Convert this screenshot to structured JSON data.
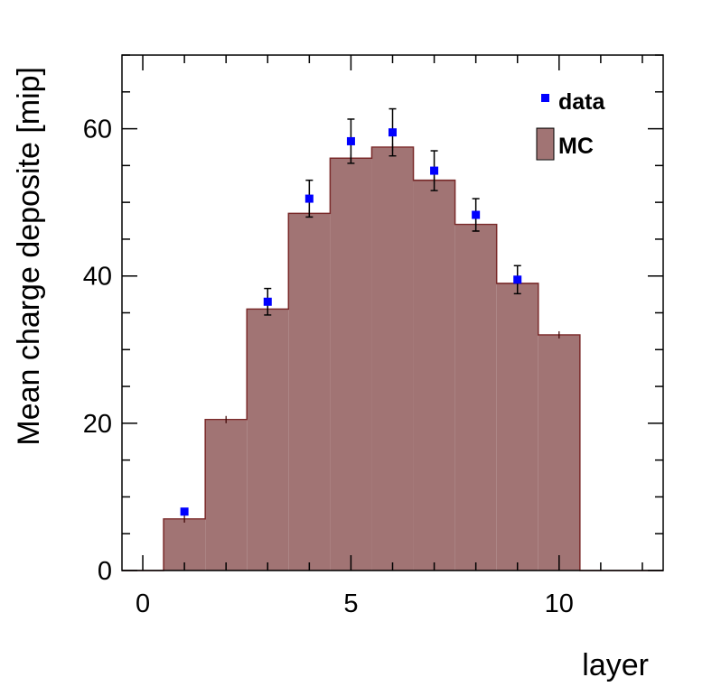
{
  "chart_data": {
    "type": "bar",
    "xlabel": "layer",
    "ylabel": "Mean charge deposite [mip]",
    "xlim": [
      -0.5,
      12.5
    ],
    "ylim": [
      0,
      70
    ],
    "x_ticks": [
      0,
      5,
      10
    ],
    "y_ticks": [
      0,
      20,
      40,
      60
    ],
    "grid": false,
    "legend_position": "top-right",
    "series": [
      {
        "name": "MC",
        "kind": "histogram",
        "color": "#a07878",
        "hatch": true,
        "x": [
          1,
          2,
          3,
          4,
          5,
          6,
          7,
          8,
          9,
          10
        ],
        "values": [
          7.0,
          20.5,
          35.5,
          48.5,
          56.0,
          57.5,
          53.0,
          47.0,
          39.0,
          32.0
        ]
      },
      {
        "name": "data",
        "kind": "points",
        "color": "#0000ff",
        "x": [
          1,
          3,
          4,
          5,
          6,
          7,
          8,
          9
        ],
        "values": [
          8.0,
          36.5,
          50.5,
          58.3,
          59.5,
          54.3,
          48.3,
          39.5
        ],
        "err": [
          0.0,
          1.8,
          2.5,
          3.0,
          3.2,
          2.7,
          2.2,
          1.9
        ]
      }
    ]
  }
}
